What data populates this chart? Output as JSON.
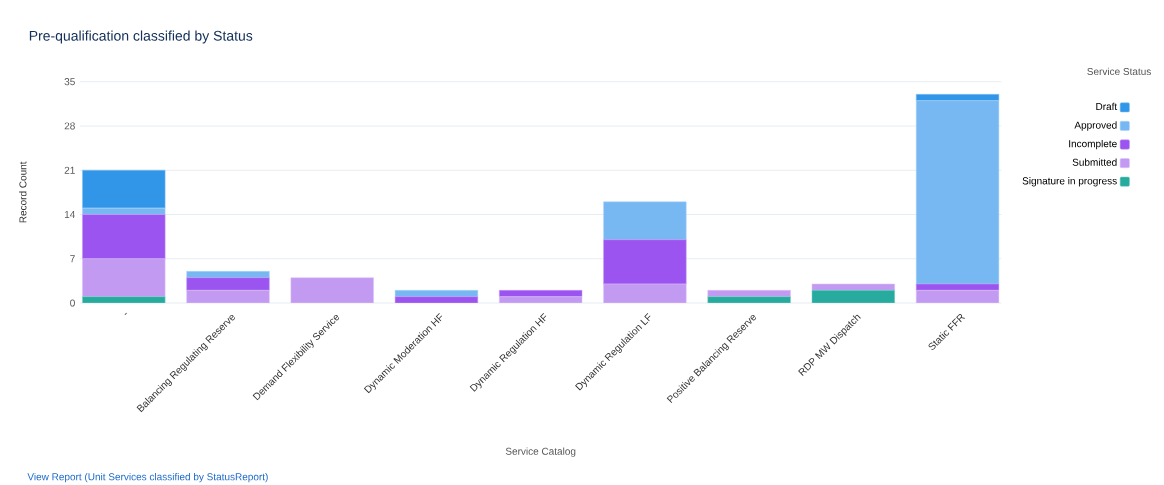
{
  "chart_data": {
    "type": "bar",
    "stacked": true,
    "title": "Pre-qualification classified by Status",
    "xlabel": "Service Catalog",
    "ylabel": "Record Count",
    "legend_title": "Service Status",
    "categories": [
      "-",
      "Balancing Regulating Reserve",
      "Demand Flexibility Service",
      "Dynamic Moderation HF",
      "Dynamic Regulation HF",
      "Dynamic Regulation LF",
      "Positive Balancing Reserve",
      "RDP MW Dispatch",
      "Static FFR"
    ],
    "series": [
      {
        "name": "Signature in progress",
        "color": "#26ab9e",
        "values": [
          1,
          null,
          null,
          null,
          null,
          null,
          1,
          2,
          null
        ]
      },
      {
        "name": "Submitted",
        "color": "#c39af2",
        "values": [
          6,
          2,
          4,
          null,
          1,
          3,
          1,
          1,
          2
        ]
      },
      {
        "name": "Incomplete",
        "color": "#9b54f0",
        "values": [
          7,
          2,
          null,
          1,
          1,
          7,
          null,
          null,
          1
        ]
      },
      {
        "name": "Approved",
        "color": "#78b8f2",
        "values": [
          1,
          1,
          null,
          1,
          null,
          6,
          null,
          null,
          29
        ]
      },
      {
        "name": "Draft",
        "color": "#3296e8",
        "values": [
          6,
          null,
          null,
          null,
          null,
          null,
          null,
          null,
          1
        ]
      }
    ],
    "ylim": [
      0,
      35
    ],
    "yticks": [
      0,
      7,
      14,
      21,
      28,
      35
    ],
    "grid": "y",
    "legend": "top right",
    "annotations": [
      "View Report (Unit Services classified by StatusReport)"
    ]
  }
}
